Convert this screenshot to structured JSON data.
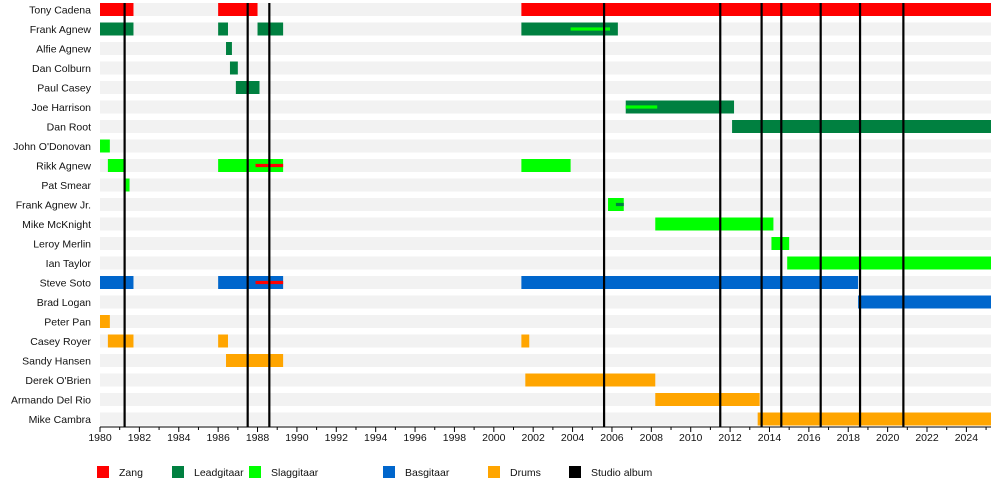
{
  "chart_data": {
    "type": "timeline",
    "title": "",
    "x_range": [
      1980,
      2025.25
    ],
    "x_ticks": [
      "1980",
      "1982",
      "1984",
      "1986",
      "1988",
      "1990",
      "1992",
      "1994",
      "1996",
      "1998",
      "2000",
      "2002",
      "2004",
      "2006",
      "2008",
      "2010",
      "2012",
      "2014",
      "2016",
      "2018",
      "2020",
      "2022",
      "2024"
    ],
    "roles": [
      {
        "key": "zang",
        "label": "Zang",
        "color": "#ff0000"
      },
      {
        "key": "lead",
        "label": "Leadgitaar",
        "color": "#008040"
      },
      {
        "key": "slag",
        "label": "Slaggitaar",
        "color": "#00ff00"
      },
      {
        "key": "bas",
        "label": "Basgitaar",
        "color": "#0066cc"
      },
      {
        "key": "drums",
        "label": "Drums",
        "color": "#ffa500"
      },
      {
        "key": "album",
        "label": "Studio album",
        "color": "#000000"
      }
    ],
    "members": [
      {
        "name": "Tony Cadena",
        "periods": [
          {
            "role": "zang",
            "start": 1980,
            "end": 1981.7
          },
          {
            "role": "zang",
            "start": 1986,
            "end": 1988
          },
          {
            "role": "zang",
            "start": 2001.4,
            "end": 2025.25
          }
        ]
      },
      {
        "name": "Frank Agnew",
        "periods": [
          {
            "role": "lead",
            "start": 1980,
            "end": 1981.7
          },
          {
            "role": "lead",
            "start": 1986,
            "end": 1986.5
          },
          {
            "role": "lead",
            "start": 1988,
            "end": 1989.3
          },
          {
            "role": "lead",
            "start": 2001.4,
            "end": 2006.3
          }
        ],
        "secondary": [
          {
            "role": "slag",
            "start": 2003.9,
            "end": 2005.9
          }
        ]
      },
      {
        "name": "Alfie Agnew",
        "periods": [
          {
            "role": "lead",
            "start": 1986.4,
            "end": 1986.7
          }
        ]
      },
      {
        "name": "Dan Colburn",
        "periods": [
          {
            "role": "lead",
            "start": 1986.6,
            "end": 1987
          }
        ]
      },
      {
        "name": "Paul Casey",
        "periods": [
          {
            "role": "lead",
            "start": 1986.9,
            "end": 1988.1
          }
        ]
      },
      {
        "name": "Joe Harrison",
        "periods": [
          {
            "role": "lead",
            "start": 2006.7,
            "end": 2012.2
          }
        ],
        "secondary": [
          {
            "role": "slag",
            "start": 2006.7,
            "end": 2008.3
          }
        ]
      },
      {
        "name": "Dan Root",
        "periods": [
          {
            "role": "lead",
            "start": 2012.1,
            "end": 2025.25
          }
        ]
      },
      {
        "name": "John O'Donovan",
        "periods": [
          {
            "role": "slag",
            "start": 1980,
            "end": 1980.5
          }
        ]
      },
      {
        "name": "Rikk Agnew",
        "periods": [
          {
            "role": "slag",
            "start": 1980.4,
            "end": 1981.3
          },
          {
            "role": "slag",
            "start": 1986,
            "end": 1989.3
          },
          {
            "role": "slag",
            "start": 2001.4,
            "end": 2003.9
          }
        ],
        "secondary": [
          {
            "role": "zang",
            "start": 1987.9,
            "end": 1989.3
          }
        ]
      },
      {
        "name": "Pat Smear",
        "periods": [
          {
            "role": "slag",
            "start": 1981.2,
            "end": 1981.5
          }
        ]
      },
      {
        "name": "Frank Agnew Jr.",
        "periods": [
          {
            "role": "slag",
            "start": 2005.8,
            "end": 2006.6
          }
        ],
        "secondary": [
          {
            "role": "lead",
            "start": 2006.2,
            "end": 2006.6
          }
        ]
      },
      {
        "name": "Mike McKnight",
        "periods": [
          {
            "role": "slag",
            "start": 2008.2,
            "end": 2014.2
          }
        ]
      },
      {
        "name": "Leroy Merlin",
        "periods": [
          {
            "role": "slag",
            "start": 2014.1,
            "end": 2015
          }
        ]
      },
      {
        "name": "Ian Taylor",
        "periods": [
          {
            "role": "slag",
            "start": 2014.9,
            "end": 2025.25
          }
        ]
      },
      {
        "name": "Steve Soto",
        "periods": [
          {
            "role": "bas",
            "start": 1980,
            "end": 1981.7
          },
          {
            "role": "bas",
            "start": 1986,
            "end": 1989.3
          },
          {
            "role": "bas",
            "start": 2001.4,
            "end": 2018.5
          }
        ],
        "secondary": [
          {
            "role": "zang",
            "start": 1987.9,
            "end": 1989.3
          }
        ]
      },
      {
        "name": "Brad Logan",
        "periods": [
          {
            "role": "bas",
            "start": 2018.5,
            "end": 2025.25
          }
        ]
      },
      {
        "name": "Peter Pan",
        "periods": [
          {
            "role": "drums",
            "start": 1980,
            "end": 1980.5
          }
        ]
      },
      {
        "name": "Casey Royer",
        "periods": [
          {
            "role": "drums",
            "start": 1980.4,
            "end": 1981.7
          },
          {
            "role": "drums",
            "start": 1986,
            "end": 1986.5
          },
          {
            "role": "drums",
            "start": 2001.4,
            "end": 2001.8
          }
        ]
      },
      {
        "name": "Sandy Hansen",
        "periods": [
          {
            "role": "drums",
            "start": 1986.4,
            "end": 1989.3
          }
        ]
      },
      {
        "name": "Derek O'Brien",
        "periods": [
          {
            "role": "drums",
            "start": 2001.6,
            "end": 2008.2
          }
        ]
      },
      {
        "name": "Armando Del Rio",
        "periods": [
          {
            "role": "drums",
            "start": 2008.2,
            "end": 2013.5
          }
        ]
      },
      {
        "name": "Mike Cambra",
        "periods": [
          {
            "role": "drums",
            "start": 2013.4,
            "end": 2025.25
          }
        ]
      }
    ],
    "albums": [
      1981.25,
      1987.5,
      1988.6,
      2005.6,
      2011.5,
      2013.6,
      2014.6,
      2016.6,
      2018.6,
      2020.8
    ]
  }
}
